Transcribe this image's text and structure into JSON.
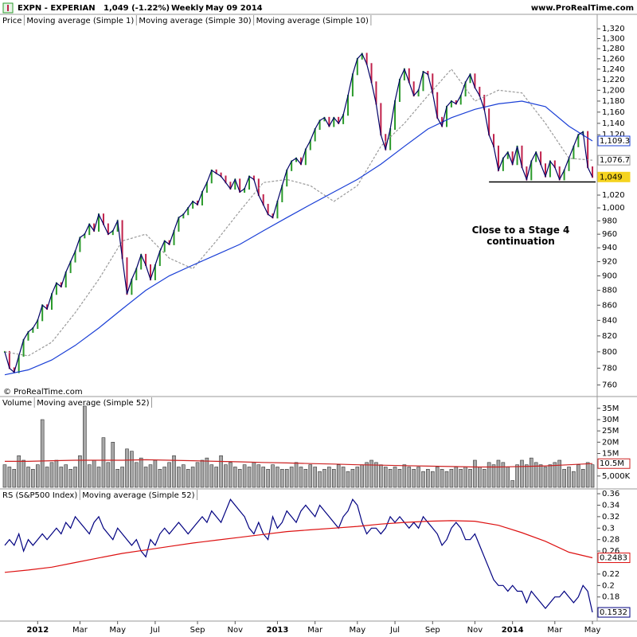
{
  "header": {
    "symbol": "EXPN - EXPERIAN",
    "quote": "1,049 (-1.22%)",
    "period": "Weekly",
    "date": "May 09 2014",
    "site": "www.ProRealTime.com"
  },
  "chart_data": [
    {
      "type": "stock",
      "price_label": "Price",
      "credit": "© ProRealTime.com",
      "log_scale": true,
      "ylim": [
        752,
        1330
      ],
      "yticks": [
        760,
        780,
        800,
        820,
        840,
        860,
        880,
        900,
        920,
        940,
        960,
        980,
        {
          "value": 1000,
          "label": "1,000"
        },
        {
          "value": 1020,
          "label": "1,020"
        },
        {
          "value": 1120,
          "label": "1,120"
        },
        {
          "value": 1140,
          "label": "1,140"
        },
        {
          "value": 1160,
          "label": "1,160"
        },
        {
          "value": 1180,
          "label": "1,180"
        },
        {
          "value": 1200,
          "label": "1,200"
        },
        {
          "value": 1220,
          "label": "1,220"
        },
        {
          "value": 1240,
          "label": "1,240"
        },
        {
          "value": 1260,
          "label": "1,260"
        },
        {
          "value": 1280,
          "label": "1,280"
        },
        {
          "value": 1300,
          "label": "1,300"
        },
        {
          "value": 1320,
          "label": "1,320"
        }
      ],
      "up_color": "#2a9a2a",
      "down_color": "#c0204a",
      "series": [
        {
          "name": "Moving average (Simple 1)",
          "color": "#000066",
          "last_label": "1,049",
          "values": [
            800,
            780,
            775,
            795,
            815,
            825,
            830,
            840,
            860,
            855,
            875,
            890,
            885,
            905,
            920,
            935,
            955,
            960,
            975,
            965,
            990,
            975,
            960,
            965,
            980,
            925,
            875,
            895,
            910,
            930,
            915,
            895,
            915,
            935,
            950,
            945,
            965,
            985,
            990,
            1000,
            1010,
            1005,
            1025,
            1040,
            1060,
            1055,
            1050,
            1040,
            1030,
            1045,
            1025,
            1030,
            1050,
            1045,
            1020,
            1005,
            990,
            985,
            1010,
            1035,
            1060,
            1075,
            1080,
            1070,
            1095,
            1110,
            1130,
            1145,
            1150,
            1135,
            1150,
            1140,
            1155,
            1190,
            1230,
            1260,
            1270,
            1250,
            1215,
            1175,
            1120,
            1095,
            1130,
            1180,
            1220,
            1240,
            1215,
            1190,
            1200,
            1235,
            1230,
            1195,
            1150,
            1135,
            1170,
            1180,
            1175,
            1190,
            1215,
            1230,
            1205,
            1190,
            1165,
            1120,
            1100,
            1060,
            1080,
            1090,
            1070,
            1100,
            1065,
            1045,
            1075,
            1090,
            1070,
            1050,
            1075,
            1065,
            1045,
            1060,
            1080,
            1100,
            1120,
            1125,
            1065,
            1049
          ]
        },
        {
          "name": "Moving average (Simple 30)",
          "color": "#1a3fd6",
          "last_label": "1,109.3",
          "x": [
            0,
            5,
            10,
            15,
            20,
            25,
            30,
            35,
            40,
            45,
            50,
            55,
            60,
            65,
            70,
            75,
            80,
            85,
            90,
            95,
            100,
            105,
            110,
            115,
            120,
            125
          ],
          "values": [
            772,
            778,
            790,
            808,
            830,
            855,
            880,
            900,
            915,
            930,
            945,
            965,
            985,
            1005,
            1025,
            1045,
            1070,
            1100,
            1130,
            1150,
            1165,
            1175,
            1180,
            1170,
            1135,
            1109.3
          ]
        },
        {
          "name": "Moving average (Simple 10)",
          "color": "#9a9a9a",
          "last_label": "1,076.7",
          "dashed": true,
          "x": [
            0,
            5,
            10,
            15,
            20,
            25,
            30,
            35,
            40,
            45,
            50,
            55,
            60,
            65,
            70,
            75,
            80,
            85,
            90,
            95,
            100,
            105,
            110,
            115,
            120,
            125
          ],
          "values": [
            800,
            795,
            812,
            850,
            895,
            950,
            960,
            925,
            910,
            950,
            995,
            1040,
            1045,
            1035,
            1010,
            1035,
            1100,
            1140,
            1190,
            1240,
            1180,
            1200,
            1195,
            1140,
            1080,
            1076.7
          ]
        }
      ],
      "support": {
        "value": 1041,
        "from": 103,
        "to": 125
      },
      "annotation": "Close to a Stage 4 continuation"
    },
    {
      "type": "bar",
      "ylim": [
        0,
        36.7
      ],
      "yticks": [
        {
          "value": 5,
          "label": "5,000K"
        },
        {
          "value": 15,
          "label": "15M"
        },
        {
          "value": 20,
          "label": "20M"
        },
        {
          "value": 25,
          "label": "25M"
        },
        {
          "value": 30,
          "label": "30M"
        },
        {
          "value": 35,
          "label": "35M"
        }
      ],
      "series": [
        {
          "name": "Volume",
          "color": "#a8a8a8",
          "values": [
            10,
            9,
            8,
            14,
            12,
            9,
            8,
            10,
            30,
            9,
            11,
            12,
            9,
            10,
            8,
            9,
            14,
            36,
            10,
            12,
            9,
            22,
            11,
            20,
            8,
            9,
            17,
            16,
            11,
            13,
            9,
            10,
            12,
            8,
            9,
            11,
            14,
            9,
            10,
            8,
            9,
            11,
            12,
            13,
            10,
            9,
            14,
            10,
            11,
            9,
            8,
            10,
            9,
            11,
            10,
            9,
            8,
            10,
            9,
            8,
            8,
            9,
            11,
            9,
            8,
            10,
            9,
            7,
            8,
            9,
            8,
            10,
            9,
            7,
            8,
            9,
            10,
            11,
            12,
            11,
            10,
            9,
            8,
            9,
            8,
            10,
            9,
            8,
            9,
            7,
            8,
            7,
            9,
            8,
            7,
            8,
            9,
            8,
            9,
            8,
            12,
            9,
            8,
            11,
            10,
            12,
            11,
            9,
            3,
            10,
            12,
            10,
            13,
            11,
            10,
            9,
            10,
            11,
            12,
            8,
            9,
            7,
            10,
            8,
            11,
            10
          ]
        },
        {
          "name": "Moving average (Simple 52)",
          "color": "#cc2222",
          "last_label": "10.5M",
          "x": [
            0,
            5,
            10,
            15,
            20,
            25,
            30,
            35,
            40,
            45,
            50,
            55,
            60,
            65,
            70,
            75,
            80,
            85,
            90,
            95,
            100,
            105,
            110,
            115,
            120,
            125
          ],
          "values": [
            11.5,
            11.5,
            11.8,
            12,
            12,
            12,
            12.2,
            12,
            11.8,
            11.5,
            11.3,
            11,
            10.8,
            10.5,
            10.3,
            10,
            9.8,
            9.6,
            9.4,
            9.2,
            9,
            9,
            9.2,
            9.5,
            10,
            10.5
          ]
        }
      ]
    },
    {
      "type": "line",
      "ylim": [
        0.138,
        0.367
      ],
      "yticks": [
        0.36,
        0.34,
        0.32,
        0.3,
        0.28,
        0.26,
        0.22,
        0.2,
        0.18
      ],
      "xlim": [
        -0.5,
        125.5
      ],
      "xticks": [
        {
          "value": 7,
          "label": "2012"
        },
        {
          "value": 16,
          "label": "Mar"
        },
        {
          "value": 24,
          "label": "May"
        },
        {
          "value": 32,
          "label": "Jul"
        },
        {
          "value": 41,
          "label": "Sep"
        },
        {
          "value": 49,
          "label": "Nov"
        },
        {
          "value": 58,
          "label": "2013"
        },
        {
          "value": 66,
          "label": "Mar"
        },
        {
          "value": 75,
          "label": "May"
        },
        {
          "value": 83,
          "label": "Jul"
        },
        {
          "value": 91,
          "label": "Sep"
        },
        {
          "value": 100,
          "label": "Nov"
        },
        {
          "value": 108,
          "label": "2014"
        },
        {
          "value": 117,
          "label": "Mar"
        },
        {
          "value": 125,
          "label": "May"
        }
      ],
      "series": [
        {
          "name": "RS (S&P500 Index)",
          "color": "#000080",
          "last_label": "0.1532",
          "values": [
            0.27,
            0.28,
            0.27,
            0.29,
            0.26,
            0.28,
            0.27,
            0.28,
            0.29,
            0.28,
            0.29,
            0.3,
            0.29,
            0.31,
            0.3,
            0.32,
            0.31,
            0.3,
            0.29,
            0.31,
            0.32,
            0.3,
            0.29,
            0.28,
            0.3,
            0.29,
            0.28,
            0.27,
            0.28,
            0.26,
            0.25,
            0.28,
            0.27,
            0.29,
            0.3,
            0.29,
            0.3,
            0.31,
            0.3,
            0.29,
            0.3,
            0.31,
            0.32,
            0.31,
            0.33,
            0.32,
            0.31,
            0.33,
            0.35,
            0.34,
            0.33,
            0.32,
            0.3,
            0.29,
            0.31,
            0.29,
            0.28,
            0.32,
            0.3,
            0.31,
            0.33,
            0.32,
            0.31,
            0.33,
            0.34,
            0.33,
            0.32,
            0.34,
            0.33,
            0.32,
            0.31,
            0.3,
            0.32,
            0.33,
            0.35,
            0.34,
            0.31,
            0.29,
            0.3,
            0.3,
            0.29,
            0.3,
            0.32,
            0.31,
            0.32,
            0.31,
            0.3,
            0.31,
            0.3,
            0.32,
            0.31,
            0.3,
            0.29,
            0.27,
            0.28,
            0.3,
            0.31,
            0.3,
            0.28,
            0.28,
            0.29,
            0.27,
            0.25,
            0.23,
            0.21,
            0.2,
            0.2,
            0.19,
            0.2,
            0.19,
            0.19,
            0.17,
            0.19,
            0.18,
            0.17,
            0.16,
            0.17,
            0.18,
            0.18,
            0.19,
            0.18,
            0.17,
            0.18,
            0.2,
            0.19,
            0.1532
          ]
        },
        {
          "name": "Moving average (Simple 52)",
          "color": "#dd1111",
          "last_label": "0.2483",
          "x": [
            0,
            5,
            10,
            15,
            20,
            25,
            30,
            35,
            40,
            45,
            50,
            55,
            60,
            65,
            70,
            75,
            80,
            85,
            90,
            95,
            100,
            105,
            110,
            115,
            120,
            125
          ],
          "values": [
            0.223,
            0.227,
            0.232,
            0.24,
            0.248,
            0.256,
            0.262,
            0.268,
            0.274,
            0.279,
            0.284,
            0.289,
            0.294,
            0.297,
            0.3,
            0.303,
            0.307,
            0.31,
            0.312,
            0.313,
            0.312,
            0.305,
            0.292,
            0.277,
            0.258,
            0.2483
          ]
        }
      ]
    }
  ]
}
